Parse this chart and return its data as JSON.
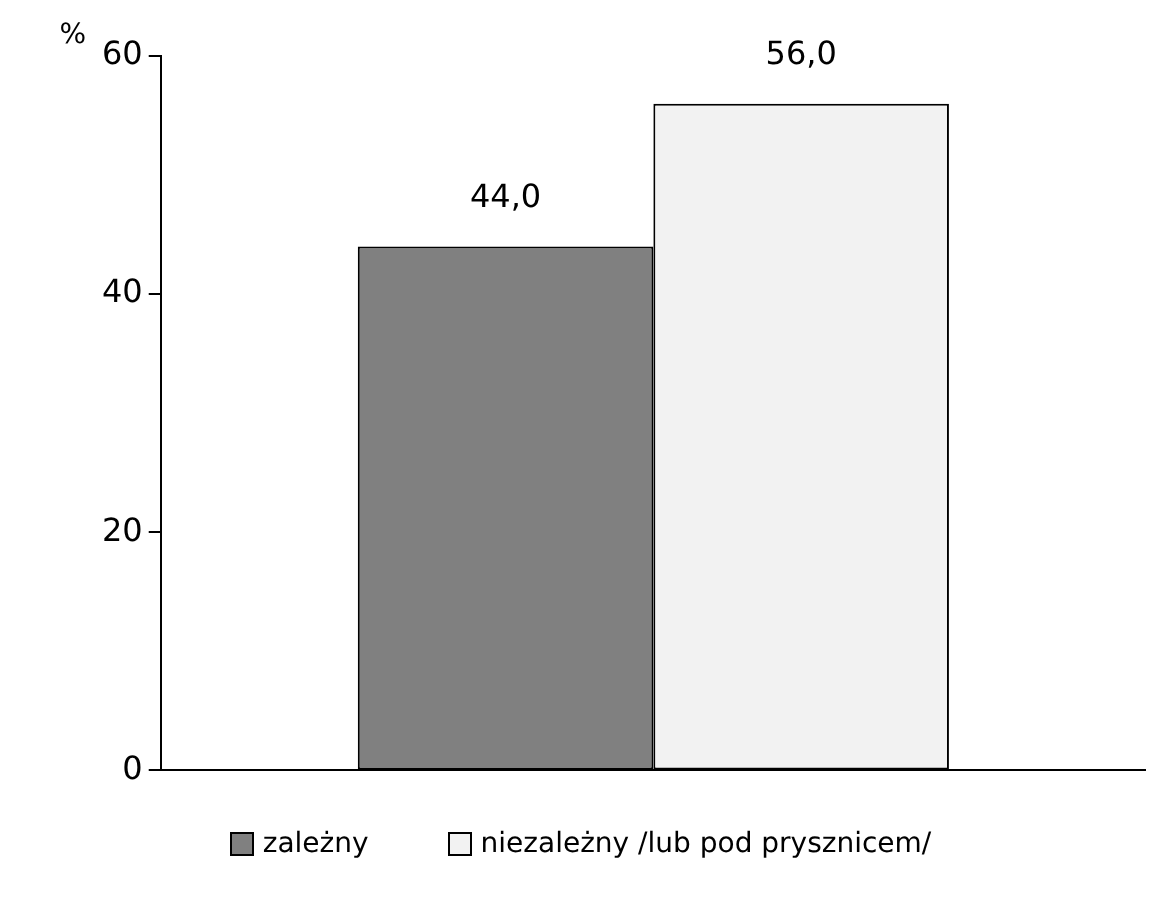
{
  "chart_data": {
    "type": "bar",
    "ylabel": "%",
    "categories": [
      null
    ],
    "series": [
      {
        "name": "zależny",
        "color": "#808080",
        "values": [
          44.0
        ],
        "value_labels": [
          "44,0"
        ]
      },
      {
        "name": "niezależny /lub pod prysznicem/",
        "color": "#f2f2f2",
        "values": [
          56.0
        ],
        "value_labels": [
          "56,0"
        ]
      }
    ],
    "ylim": [
      0,
      60
    ],
    "yticks": [
      0,
      20,
      40,
      60
    ],
    "grid": false,
    "legend": "bottom"
  }
}
